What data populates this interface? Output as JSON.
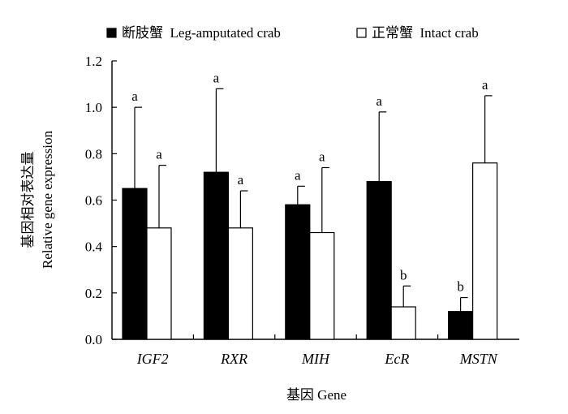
{
  "chart_data": {
    "type": "bar",
    "title": "",
    "xlabel": "基因 Gene",
    "ylabel_cn": "基因相对表达量",
    "ylabel_en": "Relative gene expression",
    "ylim": [
      0,
      1.2
    ],
    "yticks": [
      "0.0",
      "0.2",
      "0.4",
      "0.6",
      "0.8",
      "1.0",
      "1.2"
    ],
    "grid": false,
    "legend_position": "top",
    "categories": [
      "IGF2",
      "RXR",
      "MIH",
      "EcR",
      "MSTN"
    ],
    "series": [
      {
        "name": "断肢蟹  Leg-amputated crab",
        "color": "#000000",
        "values": [
          0.65,
          0.72,
          0.58,
          0.68,
          0.12
        ],
        "errors": [
          0.35,
          0.36,
          0.08,
          0.3,
          0.06
        ],
        "labels": [
          "a",
          "a",
          "a",
          "a",
          "b"
        ]
      },
      {
        "name": "正常蟹  Intact crab",
        "color": "#ffffff",
        "values": [
          0.48,
          0.48,
          0.46,
          0.14,
          0.76
        ],
        "errors": [
          0.27,
          0.16,
          0.28,
          0.09,
          0.29
        ],
        "labels": [
          "a",
          "a",
          "a",
          "b",
          "a"
        ]
      }
    ]
  }
}
